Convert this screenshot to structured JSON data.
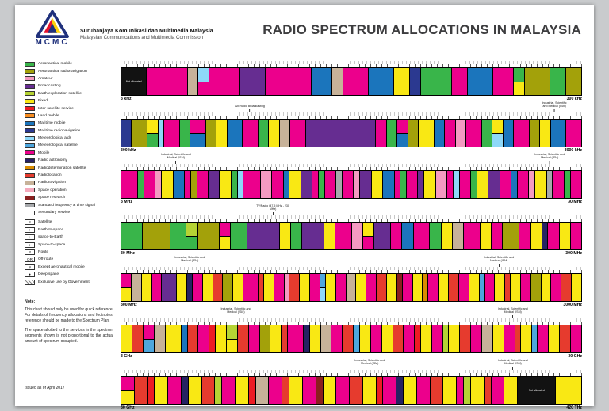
{
  "header": {
    "logo_text": "MCMC",
    "org_line1": "Suruhanjaya Komunikasi dan Multimedia Malaysia",
    "org_line2": "Malaysian Communications and Multimedia Commission",
    "title": "RADIO SPECTRUM ALLOCATIONS IN MALAYSIA"
  },
  "note": {
    "heading": "Note:",
    "para1": "This chart should only be used for quick reference. For details of frequency allocations and footnotes, reference should be made to the Spectrum Plan.",
    "para2": "The space allotted to the services in the spectrum segments shown is not proportional to the actual amount of spectrum occupied.",
    "issued": "Issued as of April 2017"
  },
  "legend": {
    "services": [
      {
        "key": "am",
        "label": "Aeronautical mobile",
        "color": "#39b54a"
      },
      {
        "key": "an",
        "label": "Aeronautical radionavigation",
        "color": "#a3a10a"
      },
      {
        "key": "at",
        "label": "Amateur",
        "color": "#f49ac1"
      },
      {
        "key": "bc",
        "label": "Broadcasting",
        "color": "#662d91"
      },
      {
        "key": "ee",
        "label": "Earth exploration satellite",
        "color": "#b5d334"
      },
      {
        "key": "fx",
        "label": "Fixed",
        "color": "#f9e814"
      },
      {
        "key": "is",
        "label": "Inter-satellite service",
        "color": "#ed1c24"
      },
      {
        "key": "lm",
        "label": "Land mobile",
        "color": "#f68b1f"
      },
      {
        "key": "mm",
        "label": "Maritime mobile",
        "color": "#1b75bc"
      },
      {
        "key": "mr",
        "label": "Maritime radionavigation",
        "color": "#2b3990"
      },
      {
        "key": "ma",
        "label": "Meteorological aids",
        "color": "#8ed8f8"
      },
      {
        "key": "ms",
        "label": "Meteorological satellite",
        "color": "#4ea6dd"
      },
      {
        "key": "mo",
        "label": "Mobile",
        "color": "#ec008c"
      },
      {
        "key": "ra",
        "label": "Radio astronomy",
        "color": "#262262"
      },
      {
        "key": "rd",
        "label": "Radiodetermination satellite",
        "color": "#d98c00"
      },
      {
        "key": "rl",
        "label": "Radiolocation",
        "color": "#e63b2e"
      },
      {
        "key": "rn",
        "label": "Radionavigation",
        "color": "#c7b299"
      },
      {
        "key": "so",
        "label": "Space operation",
        "color": "#f5a9bc"
      },
      {
        "key": "sr",
        "label": "Space research",
        "color": "#8a1f1f"
      },
      {
        "key": "sf",
        "label": "Standard frequency & time signal",
        "color": "#a7a9ac"
      },
      {
        "key": "se",
        "label": "Secondary service",
        "color": "#ffffff"
      }
    ],
    "symbols": [
      {
        "glyph": "S",
        "label": "Satellite"
      },
      {
        "glyph": "↑",
        "label": "Earth-to-space"
      },
      {
        "glyph": "↓",
        "label": "space-to-Earth"
      },
      {
        "glyph": "↕",
        "label": "Space-to-space"
      },
      {
        "glyph": "R",
        "label": "Route"
      },
      {
        "glyph": "OR",
        "label": "Off-route"
      },
      {
        "glyph": "⊘",
        "label": "Except aeronautical mobile"
      },
      {
        "glyph": "●",
        "label": "Deep space"
      },
      {
        "glyph": "",
        "hatch": true,
        "label": "Exclusive use by Government"
      }
    ]
  },
  "chart_data": {
    "type": "bar",
    "subtype": "frequency-allocation-bands",
    "legend_position": "left",
    "not_allocated_label": "Not allocated",
    "bands": [
      {
        "range_start": "3 kHz",
        "range_end": "300 kHz",
        "callouts": [],
        "segments": [
          "na*:5",
          "mo:8",
          "rn:2",
          "ma/mo:2",
          "mo:6",
          "bc:5",
          "mo:9",
          "mm:4",
          "rn:2",
          "mo:5",
          "mm:5",
          "fx:3",
          "mr:2",
          "am:6",
          "mo:3",
          "mm:5",
          "mo:4",
          "am/fx:2",
          "an:5",
          "am:3",
          "an:3"
        ]
      },
      {
        "range_start": "300 kHz",
        "range_end": "3000 kHz",
        "callouts": [
          {
            "text": "AM Radio Broadcasting",
            "x_pct": 28
          },
          {
            "text": "Industrial, Scientific and Medical (ISM)",
            "x_pct": 94
          }
        ],
        "segments": [
          "mr:2",
          "an:3",
          "fx/am:2",
          "ma:1",
          "mo:3",
          "am:2",
          "mo/mm:3",
          "an:2",
          "fx:2",
          "mm:3",
          "mo:3",
          "am:2",
          "fx:2",
          "rn:2",
          "mo:3",
          "bc:14",
          "mo:2",
          "am:2",
          "mo/mm:2",
          "an:2",
          "fx:3",
          "mm:2",
          "mo:2",
          "at:2",
          "mo:3",
          "am:2",
          "fx/ma:2",
          "mm:2",
          "mo:3",
          "an:2",
          "fx:2",
          "mm:3",
          "mo:3"
        ]
      },
      {
        "range_start": "3 MHz",
        "range_end": "30 MHz",
        "callouts": [
          {
            "text": "Industrial, Scientific and Medical (ISM)",
            "x_pct": 12
          },
          {
            "text": "Industrial, Scientific and Medical (ISM)",
            "x_pct": 93
          }
        ],
        "segments": [
          "mo:3",
          "am:1",
          "mo:2",
          "at:1",
          "fx:2",
          "mm:2",
          "mo:1",
          "an:1",
          "mo:2",
          "bc:2",
          "fx:2",
          "am:1",
          "ma:1",
          "mo:3",
          "at:2",
          "mo:2",
          "mm:1",
          "fx:2",
          "bc:2",
          "mo:1",
          "am:1",
          "mo:2",
          "sf:1",
          "mo:2",
          "at:1",
          "bc:2",
          "fx:2",
          "mm:2",
          "mo:1",
          "am:1",
          "mo:2",
          "bc:1",
          "fx:2",
          "at:2",
          "mo:1",
          "ma:1",
          "mo:2",
          "am:1",
          "fx:2",
          "bc:2",
          "mo:2",
          "mm:1",
          "mo:2",
          "at:1",
          "fx:2",
          "sf:1",
          "mo:2",
          "am:1",
          "mo:2"
        ]
      },
      {
        "range_start": "30 MHz",
        "range_end": "300 MHz",
        "callouts": [
          {
            "text": "TV/Radio (47.5 MHz - 230 MHz)",
            "x_pct": 33
          }
        ],
        "segments": [
          "am:4",
          "an:5",
          "am:3",
          "ee/am:2",
          "an:4",
          "mo/fx:2",
          "am:3",
          "bc:6",
          "fx:2",
          "am:2",
          "bc:4",
          "fx:2",
          "mo:3",
          "at:2",
          "fx/mo:2",
          "bc:3",
          "mo:2",
          "mm:2",
          "mo:3",
          "am:2",
          "fx:2",
          "rn:2",
          "mo:3",
          "fx:2",
          "mo:2",
          "an:3",
          "mo:2",
          "fx:2",
          "ra:1",
          "mo:2",
          "fx:2",
          "mo:2"
        ]
      },
      {
        "range_start": "300 MHz",
        "range_end": "3000 MHz",
        "callouts": [
          {
            "text": "Industrial, Scientific and Medical (ISM)",
            "x_pct": 15
          },
          {
            "text": "Industrial, Scientific and Medical (ISM)",
            "x_pct": 82
          }
        ],
        "segments": [
          "mo/fx:2",
          "rn:2",
          "fx:2",
          "mo:2",
          "bc:3",
          "fx:2",
          "ra:1",
          "mo:2",
          "fx:2",
          "rl:2",
          "an:2",
          "fx:2",
          "mo:3",
          "rl:1",
          "fx:2",
          "mo:2",
          "at:1",
          "rl:2",
          "fx:2",
          "mo:2",
          "ms/ma:1",
          "fx:2",
          "mo:2",
          "rn:2",
          "fx:2",
          "mo:2",
          "rl:2",
          "fx:2",
          "sr:1",
          "mo:2",
          "fx:2",
          "rd:1",
          "mo:2",
          "fx:2",
          "rl:2",
          "mo:2",
          "fx:2",
          "ms:1",
          "mo:2",
          "fx:2",
          "rl:1",
          "fx:2",
          "mo:2",
          "an:2",
          "fx:2",
          "mo:2",
          "rl:2",
          "fx:2"
        ]
      },
      {
        "range_start": "3 GHz",
        "range_end": "30 GHz",
        "callouts": [
          {
            "text": "Industrial, Scientific and Medical (ISM)",
            "x_pct": 25
          },
          {
            "text": "Industrial, Scientific and Medical (ISM)",
            "x_pct": 85
          }
        ],
        "segments": [
          "fx:2",
          "rl:2",
          "mo/ms:2",
          "rn:2",
          "fx:3",
          "mm:1",
          "rl:2",
          "mo:2",
          "is:1",
          "fx:2",
          "ee/fx:2",
          "rl:2",
          "mo:2",
          "an:2",
          "fx:2",
          "rl:1",
          "mo:3",
          "ra:1",
          "fx:2",
          "rn:2",
          "mo:2",
          "rl:2",
          "ms:1",
          "fx:2",
          "mo:2",
          "fx:2",
          "rl:2",
          "mo:2",
          "is:1",
          "fx:2",
          "mo:2",
          "ee:1",
          "fx:2",
          "rl:2",
          "mo:2",
          "rn:2",
          "fx:2",
          "mo:2",
          "rl:1",
          "fx:2",
          "ms:1",
          "mo:2",
          "fx:2",
          "rl:2",
          "mo:2"
        ]
      },
      {
        "range_start": "30 GHz",
        "range_end": "420 THz",
        "callouts": [
          {
            "text": "Industrial, Scientific and Medical (ISM)",
            "x_pct": 54
          },
          {
            "text": "Industrial, Scientific and Medical (ISM)",
            "x_pct": 85
          }
        ],
        "segments": [
          "mo/fx:2",
          "rl:2",
          "is:1",
          "fx:2",
          "mo:2",
          "ra:1",
          "fx:2",
          "rl:2",
          "ee:1",
          "mo:2",
          "fx:2",
          "is:1",
          "rn:2",
          "mo:2",
          "rl:1",
          "fx:2",
          "mo:2",
          "sr:1",
          "fx:2",
          "mo:2",
          "rl:2",
          "fx:2",
          "is:1",
          "mo:2",
          "ra:1",
          "fx:2",
          "mo:2",
          "rl:2",
          "fx:2",
          "mo:1",
          "ee:1",
          "fx:2",
          "rl:1",
          "mo:2",
          "fx:2",
          "na*:6",
          "fx:4"
        ]
      }
    ]
  }
}
